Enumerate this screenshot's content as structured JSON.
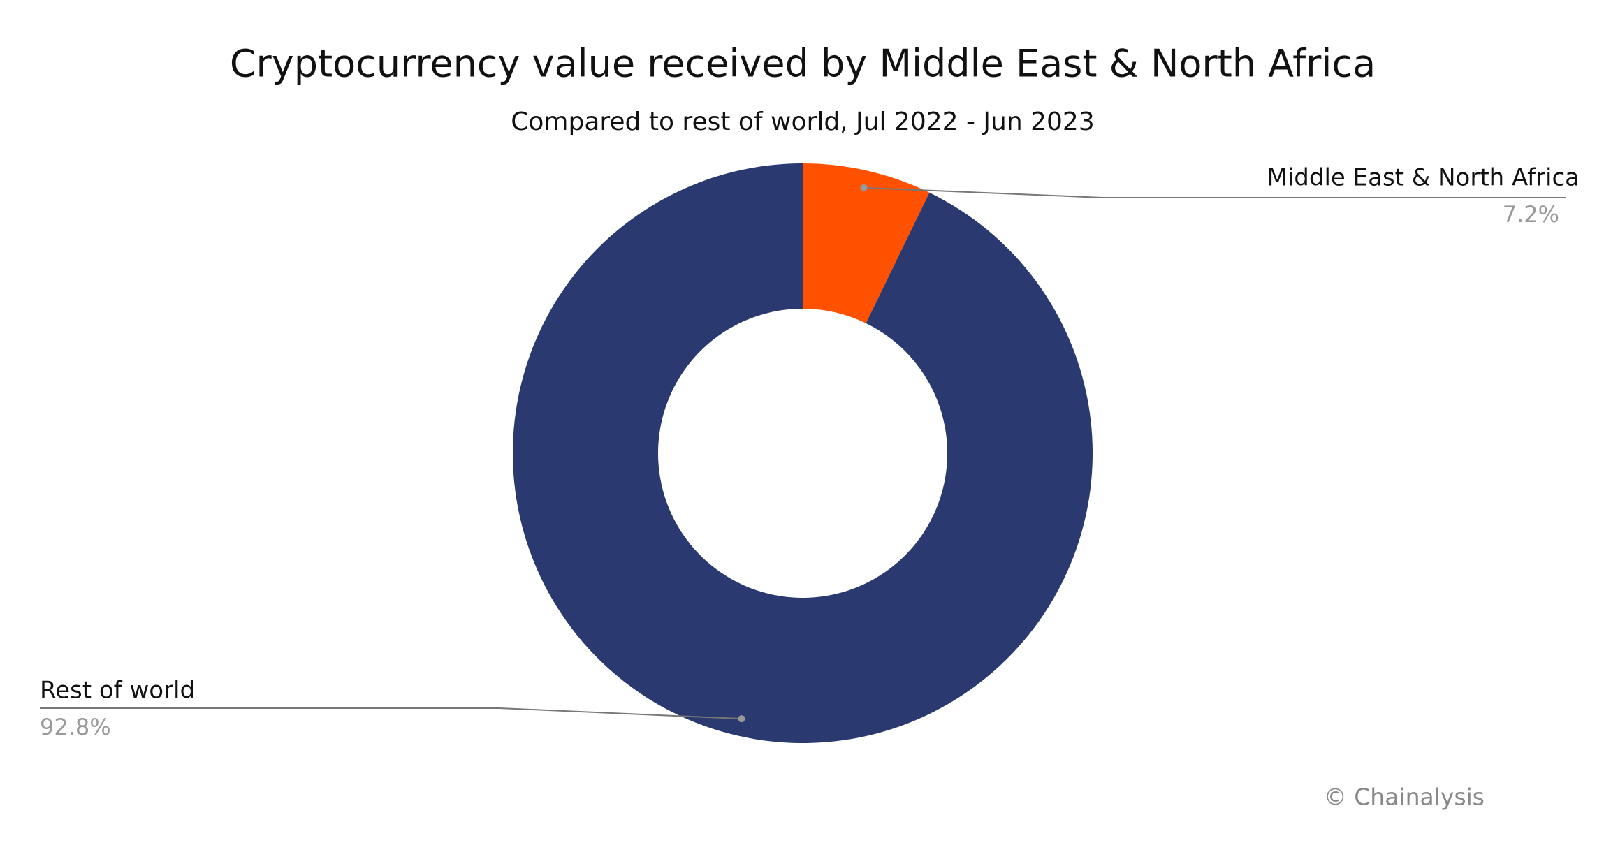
{
  "chart_data": {
    "type": "pie",
    "title": "Cryptocurrency value received by Middle East & North Africa",
    "subtitle": "Compared to rest of world, Jul 2022 - Jun 2023",
    "categories": [
      "Middle East & North Africa",
      "Rest of world"
    ],
    "values": [
      7.2,
      92.8
    ],
    "value_labels": [
      "7.2%",
      "92.8%"
    ],
    "colors": [
      "#ff5100",
      "#2a3970"
    ],
    "source": "© Chainalysis"
  }
}
